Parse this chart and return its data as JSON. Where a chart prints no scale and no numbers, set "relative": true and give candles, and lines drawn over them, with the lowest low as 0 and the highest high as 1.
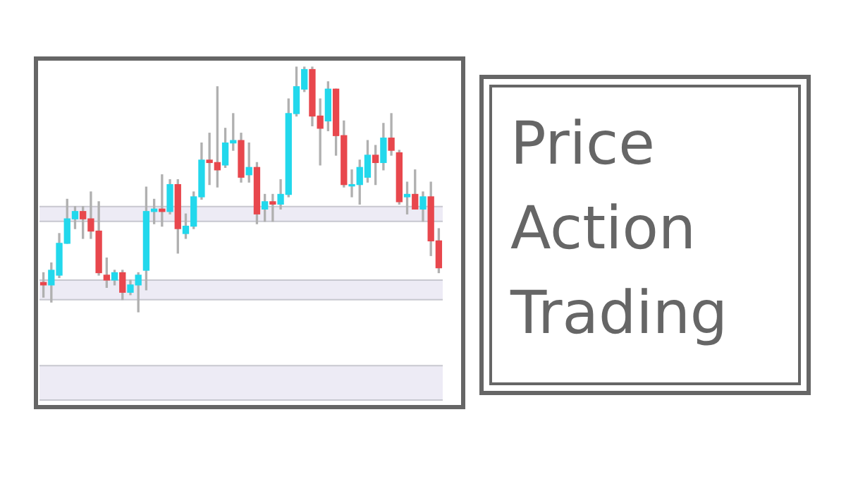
{
  "chart_data": {
    "type": "candlestick",
    "title": "Price Action Trading",
    "relative": true,
    "tick_labels": false,
    "categories": [
      null,
      null,
      null,
      null,
      null,
      null,
      null,
      null,
      null,
      null,
      null,
      null,
      null,
      null,
      null,
      null,
      null,
      null,
      null,
      null,
      null,
      null,
      null,
      null,
      null,
      null,
      null,
      null,
      null,
      null,
      null,
      null,
      null,
      null,
      null,
      null,
      null,
      null,
      null,
      null,
      null,
      null,
      null,
      null,
      null,
      null,
      null,
      null,
      null,
      null,
      null
    ],
    "ohlc": [
      [
        0.12,
        0.16,
        0.06,
        0.11
      ],
      [
        0.11,
        0.2,
        0.04,
        0.17
      ],
      [
        0.15,
        0.32,
        0.14,
        0.28
      ],
      [
        0.28,
        0.46,
        0.28,
        0.38
      ],
      [
        0.38,
        0.43,
        0.34,
        0.41
      ],
      [
        0.41,
        0.43,
        0.3,
        0.38
      ],
      [
        0.38,
        0.49,
        0.3,
        0.33
      ],
      [
        0.33,
        0.45,
        0.15,
        0.16
      ],
      [
        0.15,
        0.22,
        0.1,
        0.13
      ],
      [
        0.13,
        0.17,
        0.11,
        0.16
      ],
      [
        0.16,
        0.17,
        0.05,
        0.08
      ],
      [
        0.08,
        0.13,
        0.07,
        0.11
      ],
      [
        0.11,
        0.16,
        0,
        0.15
      ],
      [
        0.17,
        0.51,
        0.09,
        0.41
      ],
      [
        0.41,
        0.46,
        0.36,
        0.42
      ],
      [
        0.42,
        0.56,
        0.35,
        0.41
      ],
      [
        0.41,
        0.54,
        0.4,
        0.52
      ],
      [
        0.52,
        0.54,
        0.24,
        0.34
      ],
      [
        0.32,
        0.4,
        0.3,
        0.35
      ],
      [
        0.35,
        0.49,
        0.34,
        0.47
      ],
      [
        0.47,
        0.69,
        0.46,
        0.62
      ],
      [
        0.62,
        0.73,
        0.52,
        0.61
      ],
      [
        0.61,
        0.92,
        0.51,
        0.58
      ],
      [
        0.6,
        0.75,
        0.59,
        0.69
      ],
      [
        0.69,
        0.81,
        0.66,
        0.7
      ],
      [
        0.7,
        0.73,
        0.53,
        0.55
      ],
      [
        0.56,
        0.69,
        0.53,
        0.59
      ],
      [
        0.59,
        0.61,
        0.36,
        0.4
      ],
      [
        0.42,
        0.48,
        0.37,
        0.45
      ],
      [
        0.45,
        0.48,
        0.37,
        0.44
      ],
      [
        0.44,
        0.54,
        0.42,
        0.48
      ],
      [
        0.48,
        0.87,
        0.47,
        0.81
      ],
      [
        0.81,
        1,
        0.8,
        0.92
      ],
      [
        0.91,
        1,
        0.9,
        0.99
      ],
      [
        0.99,
        1,
        0.76,
        0.8
      ],
      [
        0.8,
        0.87,
        0.6,
        0.75
      ],
      [
        0.78,
        0.94,
        0.74,
        0.91
      ],
      [
        0.91,
        0.91,
        0.64,
        0.72
      ],
      [
        0.72,
        0.78,
        0.51,
        0.52
      ],
      [
        0.52,
        0.58,
        0.47,
        0.52
      ],
      [
        0.52,
        0.62,
        0.44,
        0.59
      ],
      [
        0.55,
        0.7,
        0.53,
        0.64
      ],
      [
        0.64,
        0.68,
        0.52,
        0.61
      ],
      [
        0.61,
        0.77,
        0.58,
        0.71
      ],
      [
        0.71,
        0.81,
        0.64,
        0.66
      ],
      [
        0.65,
        0.66,
        0.44,
        0.45
      ],
      [
        0.47,
        0.53,
        0.4,
        0.48
      ],
      [
        0.48,
        0.58,
        0.42,
        0.42
      ],
      [
        0.42,
        0.49,
        0.37,
        0.47
      ],
      [
        0.47,
        0.53,
        0.23,
        0.29
      ],
      [
        0.29,
        0.34,
        0.16,
        0.18
      ]
    ],
    "colors": [
      "#e8474d",
      "#22d8ec",
      "#22d8ec",
      "#22d8ec",
      "#22d8ec",
      "#e8474d",
      "#e8474d",
      "#e8474d",
      "#e8474d",
      "#22d8ec",
      "#e8474d",
      "#22d8ec",
      "#22d8ec",
      "#22d8ec",
      "#22d8ec",
      "#e8474d",
      "#22d8ec",
      "#e8474d",
      "#22d8ec",
      "#22d8ec",
      "#22d8ec",
      "#e8474d",
      "#e8474d",
      "#22d8ec",
      "#22d8ec",
      "#e8474d",
      "#22d8ec",
      "#e8474d",
      "#22d8ec",
      "#e8474d",
      "#22d8ec",
      "#22d8ec",
      "#22d8ec",
      "#22d8ec",
      "#e8474d",
      "#e8474d",
      "#22d8ec",
      "#e8474d",
      "#e8474d",
      "#22d8ec",
      "#22d8ec",
      "#22d8ec",
      "#e8474d",
      "#22d8ec",
      "#e8474d",
      "#e8474d",
      "#22d8ec",
      "#e8474d",
      "#22d8ec",
      "#e8474d",
      "#e8474d"
    ],
    "bands": [
      {
        "axis": "y",
        "from": 0.37,
        "to": 0.43,
        "color": "#edebf5"
      },
      {
        "axis": "y",
        "from": 0.05,
        "to": 0.13,
        "color": "#edebf5"
      },
      {
        "axis": "y",
        "from": -0.36,
        "to": -0.22,
        "color": "#edebf5"
      }
    ]
  }
}
